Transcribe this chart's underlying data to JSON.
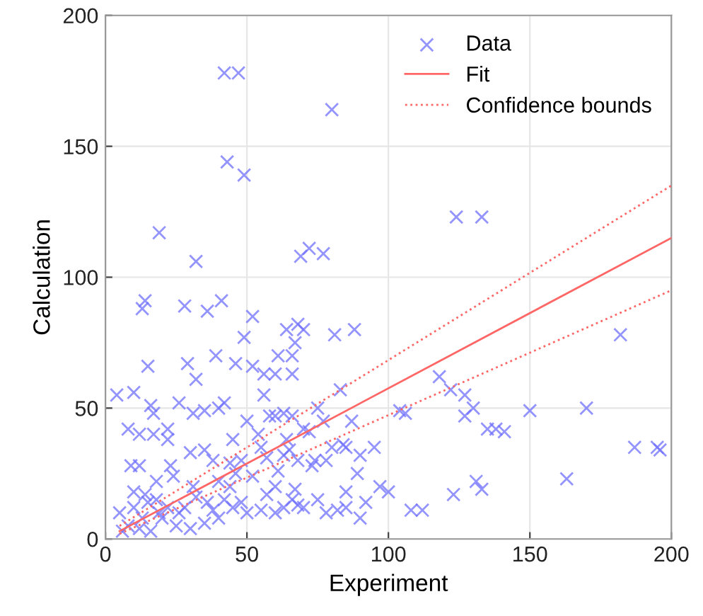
{
  "chart_data": {
    "type": "scatter",
    "xlabel": "Experiment",
    "ylabel": "Calculation",
    "xlim": [
      0,
      200
    ],
    "ylim": [
      0,
      200
    ],
    "xticks": [
      0,
      50,
      100,
      150,
      200
    ],
    "yticks": [
      0,
      50,
      100,
      150,
      200
    ],
    "grid": true,
    "legend": "top right",
    "series": [
      {
        "name": "Data",
        "marker": "cross",
        "color": "#7070ff",
        "x": [
          42,
          47,
          80,
          43,
          49,
          72,
          77,
          124,
          133,
          19,
          32,
          14,
          13,
          41,
          36,
          28,
          49,
          52,
          61,
          67,
          64,
          68,
          70,
          81,
          69,
          60,
          56,
          66,
          88,
          75,
          83,
          77,
          85,
          90,
          89,
          87,
          84,
          100,
          106,
          104,
          112,
          108,
          118,
          122,
          123,
          130,
          127,
          131,
          135,
          138,
          127,
          141,
          150,
          163,
          170,
          182,
          187,
          195,
          196,
          133,
          10,
          16,
          12,
          4,
          8,
          15,
          22,
          35,
          40,
          42,
          29,
          39,
          46,
          52,
          32,
          31,
          26,
          17,
          17,
          22,
          23,
          12,
          9,
          30,
          31,
          35,
          38,
          44,
          45,
          48,
          44,
          50,
          55,
          60,
          56,
          63,
          66,
          70,
          65,
          63,
          72,
          68,
          57,
          63,
          45,
          50,
          55,
          60,
          68,
          70,
          75,
          82,
          85,
          92,
          90,
          78,
          28,
          22,
          18,
          15,
          10,
          13,
          8,
          6,
          10,
          14,
          20,
          25,
          30,
          35,
          40,
          42,
          36,
          24,
          18,
          5,
          12,
          16,
          19,
          26,
          32,
          38,
          48,
          52,
          57,
          61,
          64,
          67,
          73,
          80,
          78,
          95,
          97,
          85,
          54,
          58,
          66,
          74,
          40,
          46,
          60,
          66
        ],
        "values": [
          178,
          178,
          164,
          144,
          139,
          111,
          109,
          123,
          123,
          117,
          106,
          91,
          88,
          91,
          87,
          89,
          77,
          85,
          70,
          75,
          80,
          82,
          80,
          78,
          108,
          63,
          63,
          63,
          80,
          50,
          57,
          45,
          35,
          32,
          25,
          45,
          36,
          18,
          48,
          49,
          11,
          11,
          62,
          57,
          17,
          50,
          47,
          22,
          42,
          42,
          55,
          41,
          49,
          23,
          50,
          78,
          35,
          35,
          34,
          19,
          56,
          51,
          40,
          55,
          42,
          66,
          38,
          49,
          50,
          52,
          67,
          70,
          67,
          66,
          61,
          48,
          52,
          48,
          40,
          42,
          28,
          28,
          28,
          33,
          20,
          34,
          30,
          29,
          38,
          30,
          20,
          45,
          35,
          47,
          55,
          48,
          47,
          42,
          34,
          32,
          41,
          30,
          17,
          12,
          12,
          10,
          11,
          10,
          13,
          12,
          15,
          11,
          12,
          14,
          8,
          10,
          12,
          12,
          15,
          14,
          12,
          8,
          5,
          3,
          18,
          17,
          8,
          5,
          4,
          6,
          8,
          15,
          14,
          24,
          22,
          10,
          4,
          3,
          10,
          10,
          16,
          11,
          14,
          24,
          31,
          26,
          38,
          19,
          28,
          35,
          30,
          35,
          20,
          18,
          40,
          47,
          70,
          30,
          22,
          25,
          20,
          15
        ]
      },
      {
        "name": "Fit",
        "type": "line",
        "line_style": "solid",
        "color": "#ff6666",
        "x": [
          5,
          200
        ],
        "values": [
          3,
          115
        ]
      },
      {
        "name": "Confidence bounds",
        "type": "line",
        "line_style": "dotted",
        "color": "#ff6666",
        "x": [
          5,
          200
        ],
        "values": [
          5,
          135
        ]
      },
      {
        "type": "line",
        "line_style": "dotted",
        "color": "#ff6666",
        "x": [
          5,
          200
        ],
        "values": [
          2,
          95
        ]
      }
    ]
  }
}
